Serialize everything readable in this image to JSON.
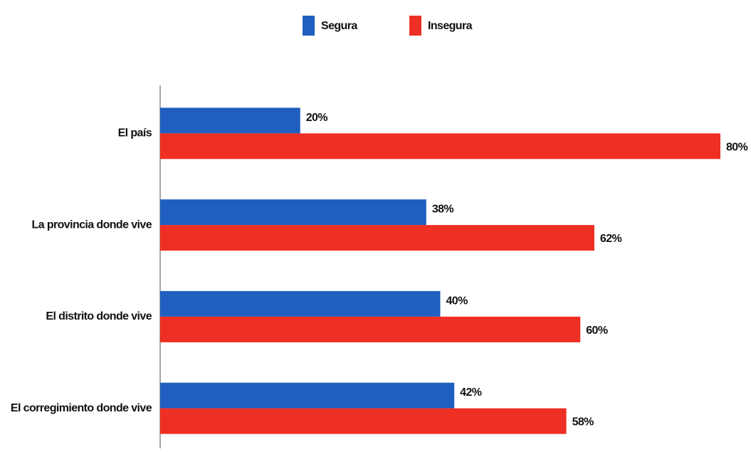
{
  "chart_data": {
    "type": "hbar",
    "categories": [
      "El país",
      "La provincia donde vive",
      "El distrito donde vive",
      "El corregimiento donde vive"
    ],
    "series": [
      {
        "name": "Segura",
        "color": "#1f5fbf",
        "values": [
          20,
          38,
          40,
          42
        ],
        "value_labels": [
          "20%",
          "38%",
          "40%",
          "42%"
        ]
      },
      {
        "name": "Insegura",
        "color": "#ee2f24",
        "values": [
          80,
          62,
          60,
          58
        ],
        "value_labels": [
          "80%",
          "62%",
          "60%",
          "58%"
        ]
      }
    ],
    "legend": "top"
  }
}
